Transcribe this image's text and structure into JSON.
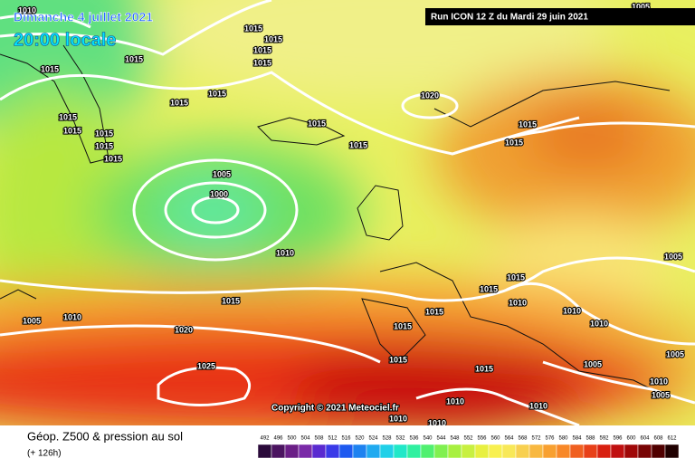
{
  "header": {
    "date": "Dimanche 4 juillet 2021",
    "time": "20:00 locale",
    "run": "Run ICON 12 Z du Mardi 29 juin 2021"
  },
  "copyright": "Copyright © 2021 Meteociel.fr",
  "footer": {
    "title": "Géop. Z500 & pression au sol",
    "lead": "(+ 126h)"
  },
  "isobar_labels": [
    "1010",
    "1005",
    "1015",
    "1015",
    "1015",
    "1015",
    "1015",
    "1015",
    "1015",
    "1015",
    "1015",
    "1015",
    "1015",
    "1015",
    "1015",
    "1015",
    "1015",
    "1015",
    "1015",
    "1020",
    "1005",
    "1000",
    "1010",
    "1015",
    "1005",
    "1010",
    "1020",
    "1025",
    "1015",
    "1015",
    "1015",
    "1015",
    "1010",
    "1010",
    "1010",
    "1005",
    "1005",
    "1005",
    "1010",
    "1005",
    "1010",
    "1010",
    "1015",
    "1015",
    "1010",
    "1010"
  ],
  "scale": {
    "values": [
      492,
      496,
      500,
      504,
      508,
      512,
      516,
      520,
      524,
      528,
      532,
      536,
      540,
      544,
      548,
      552,
      556,
      560,
      564,
      568,
      572,
      576,
      580,
      584,
      588,
      592,
      596,
      600,
      604,
      608,
      612
    ],
    "colors": [
      "#2a0a3a",
      "#4b1460",
      "#6a1e86",
      "#7a2aa8",
      "#5a2ad0",
      "#3a3ae8",
      "#1e5af0",
      "#1e82f0",
      "#20aaf0",
      "#20d0e8",
      "#20e8c8",
      "#30f0a0",
      "#50f070",
      "#80f050",
      "#a8f040",
      "#c8f040",
      "#e8f040",
      "#f8f050",
      "#f8e858",
      "#f8d050",
      "#f8b840",
      "#f8a030",
      "#f88828",
      "#f06020",
      "#e84018",
      "#d82010",
      "#c01010",
      "#a00808",
      "#780404",
      "#500000",
      "#200000"
    ]
  }
}
